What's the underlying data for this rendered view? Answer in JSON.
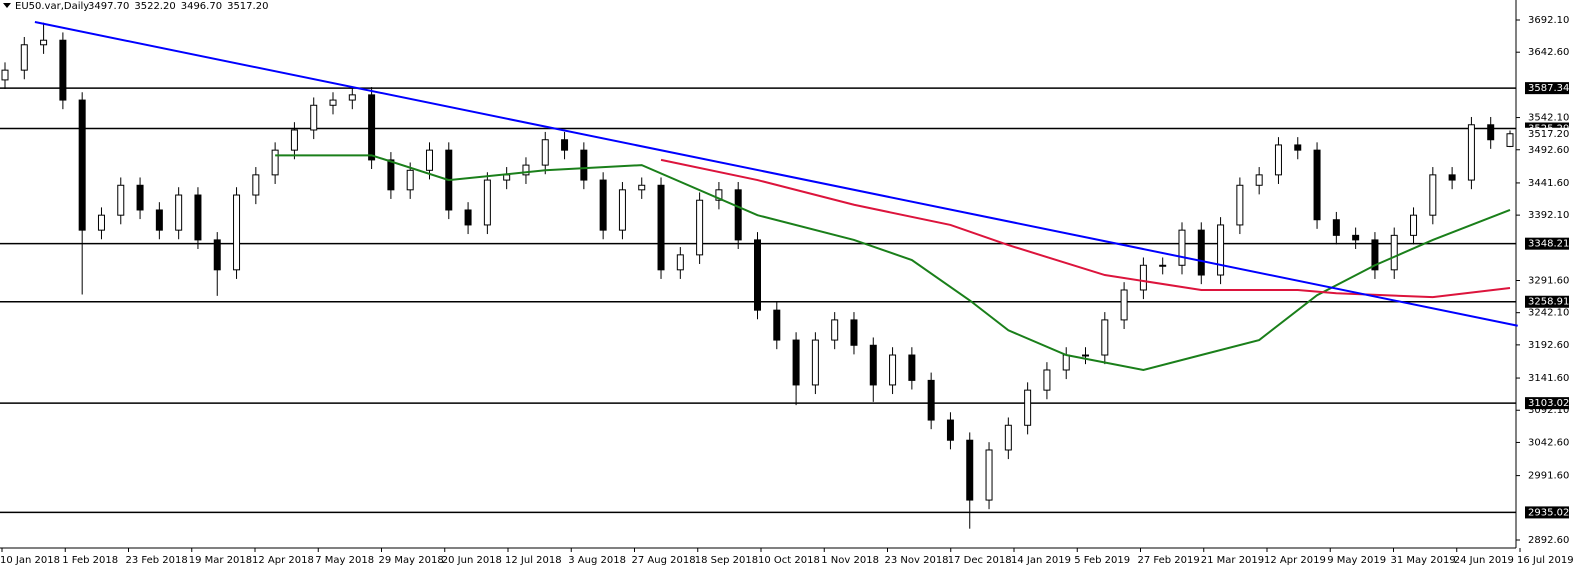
{
  "chart_data": {
    "type": "candlestick",
    "symbol": "EU50.var,Daily",
    "header_values": [
      "3497.70",
      "3522.20",
      "3496.70",
      "3517.20"
    ],
    "open": [
      3600,
      3615,
      3654,
      3661,
      3569,
      3369,
      3392,
      3438,
      3400,
      3369,
      3423,
      3354,
      3308,
      3423,
      3454,
      3492,
      3523,
      3561,
      3569,
      3577,
      3477,
      3431,
      3461,
      3492,
      3400,
      3377,
      3446,
      3454,
      3469,
      3508,
      3492,
      3446,
      3369,
      3431,
      3438,
      3308,
      3331,
      3415,
      3431,
      3354,
      3246,
      3200,
      3131,
      3200,
      3231,
      3192,
      3131,
      3177,
      3138,
      3077,
      3046,
      2954,
      3031,
      3069,
      3123,
      3154,
      3177,
      3177,
      3231,
      3277,
      3315,
      3315,
      3369,
      3300,
      3377,
      3438,
      3454,
      3500,
      3492,
      3385,
      3361,
      3354,
      3308,
      3361,
      3392,
      3454,
      3446,
      3531,
      3497.7
    ],
    "high": [
      3627,
      3666,
      3688,
      3673,
      3581,
      3404,
      3450,
      3450,
      3412,
      3435,
      3435,
      3366,
      3435,
      3466,
      3504,
      3535,
      3573,
      3581,
      3589,
      3589,
      3489,
      3473,
      3504,
      3504,
      3412,
      3458,
      3466,
      3481,
      3520,
      3520,
      3504,
      3458,
      3443,
      3450,
      3450,
      3343,
      3427,
      3443,
      3443,
      3366,
      3258,
      3212,
      3212,
      3243,
      3243,
      3204,
      3189,
      3189,
      3150,
      3089,
      3058,
      3043,
      3081,
      3135,
      3166,
      3189,
      3189,
      3243,
      3289,
      3327,
      3327,
      3381,
      3381,
      3389,
      3450,
      3466,
      3512,
      3512,
      3504,
      3397,
      3373,
      3366,
      3373,
      3404,
      3466,
      3466,
      3543,
      3543,
      3522.2
    ],
    "low": [
      3586,
      3601,
      3640,
      3555,
      3270,
      3355,
      3378,
      3386,
      3355,
      3355,
      3340,
      3268,
      3294,
      3409,
      3440,
      3478,
      3509,
      3547,
      3555,
      3463,
      3417,
      3417,
      3447,
      3386,
      3363,
      3363,
      3432,
      3440,
      3455,
      3478,
      3432,
      3355,
      3355,
      3417,
      3294,
      3294,
      3317,
      3401,
      3340,
      3232,
      3186,
      3100,
      3117,
      3186,
      3178,
      3105,
      3117,
      3124,
      3063,
      3032,
      2910,
      2940,
      3017,
      3055,
      3109,
      3140,
      3163,
      3163,
      3217,
      3263,
      3301,
      3301,
      3286,
      3286,
      3363,
      3424,
      3440,
      3478,
      3371,
      3347,
      3340,
      3294,
      3294,
      3347,
      3378,
      3432,
      3432,
      3494,
      3496.7
    ],
    "close": [
      3615,
      3654,
      3661,
      3569,
      3369,
      3392,
      3438,
      3400,
      3369,
      3423,
      3354,
      3308,
      3423,
      3454,
      3492,
      3523,
      3561,
      3569,
      3577,
      3477,
      3431,
      3461,
      3492,
      3400,
      3377,
      3446,
      3454,
      3469,
      3508,
      3492,
      3446,
      3369,
      3431,
      3438,
      3308,
      3331,
      3415,
      3431,
      3354,
      3246,
      3200,
      3131,
      3200,
      3231,
      3192,
      3131,
      3177,
      3138,
      3077,
      3046,
      2954,
      3031,
      3069,
      3123,
      3154,
      3177,
      3177,
      3231,
      3277,
      3315,
      3315,
      3369,
      3300,
      3377,
      3438,
      3454,
      3500,
      3492,
      3385,
      3361,
      3354,
      3308,
      3361,
      3392,
      3454,
      3446,
      3531,
      3508,
      3517.2
    ],
    "up_color": "#ffffff",
    "down_color": "#000000",
    "overlays": [
      {
        "color": "#1a7f1a",
        "x": [
          14,
          19,
          23,
          28,
          33,
          39,
          44,
          47,
          50,
          52,
          55,
          59,
          62,
          65,
          68,
          71,
          74,
          78
        ],
        "values": [
          3484,
          3484,
          3446,
          3461,
          3469,
          3392,
          3354,
          3323,
          3261,
          3215,
          3177,
          3154,
          3177,
          3200,
          3269,
          3315,
          3354,
          3400
        ]
      },
      {
        "color": "#dc143c",
        "x": [
          34,
          39,
          44,
          49,
          52,
          57,
          62,
          67,
          69,
          74,
          78
        ],
        "values": [
          3477,
          3446,
          3408,
          3377,
          3346,
          3300,
          3277,
          3277,
          3272,
          3266,
          3280
        ]
      }
    ],
    "trendline": {
      "color": "#0000ff",
      "x": [
        1.55,
        78.4
      ],
      "values": [
        3689,
        3222
      ]
    },
    "levels": [
      3587.34,
      3525.29,
      3348.21,
      3258.91,
      3103.02,
      2935.02
    ],
    "current_price": {
      "value": 3517.2,
      "label": "3517.20"
    },
    "ylim": [
      2880.3,
      3722.85
    ],
    "yticks": [
      {
        "value": 3692.1,
        "label": "3692.10"
      },
      {
        "value": 3642.6,
        "label": "3642.60"
      },
      {
        "value": 3542.1,
        "label": "3542.10"
      },
      {
        "value": 3492.6,
        "label": "3492.60"
      },
      {
        "value": 3441.6,
        "label": "3441.60"
      },
      {
        "value": 3392.1,
        "label": "3392.10"
      },
      {
        "value": 3291.6,
        "label": "3291.60"
      },
      {
        "value": 3242.1,
        "label": "3242.10"
      },
      {
        "value": 3192.6,
        "label": "3192.60"
      },
      {
        "value": 3141.6,
        "label": "3141.60"
      },
      {
        "value": 3092.1,
        "label": "3092.10"
      },
      {
        "value": 3042.6,
        "label": "3042.60"
      },
      {
        "value": 2991.6,
        "label": "2991.60"
      },
      {
        "value": 2892.6,
        "label": "2892.60"
      }
    ],
    "dates": [
      "10 Jan 2018",
      "1 Feb 2018",
      "23 Feb 2018",
      "19 Mar 2018",
      "12 Apr 2018",
      "7 May 2018",
      "29 May 2018",
      "20 Jun 2018",
      "12 Jul 2018",
      "3 Aug 2018",
      "27 Aug 2018",
      "18 Sep 2018",
      "10 Oct 2018",
      "1 Nov 2018",
      "23 Nov 2018",
      "17 Dec 2018",
      "14 Jan 2019",
      "5 Feb 2019",
      "27 Feb 2019",
      "21 Mar 2019",
      "12 Apr 2019",
      "9 May 2019",
      "31 May 2019",
      "24 Jun 2019",
      "16 Jul 2019"
    ]
  }
}
